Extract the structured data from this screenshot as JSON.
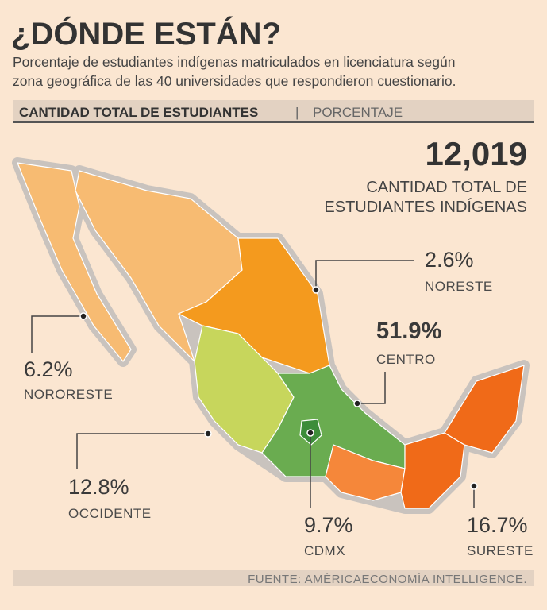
{
  "header": {
    "title": "¿DÓNDE ESTÁN?",
    "subtitle_lines": [
      "Porcentaje de estudiantes indígenas matriculados en licenciatura según",
      "zona geográfica de las 40 universidades que respondieron cuestionario."
    ],
    "tab_left": "CANTIDAD TOTAL DE ESTUDIANTES",
    "tab_separator": "|",
    "tab_right": "PORCENTAJE"
  },
  "total": {
    "value": "12,019",
    "label_lines": [
      "CANTIDAD TOTAL DE",
      "ESTUDIANTES INDÍGENAS"
    ]
  },
  "regions": [
    {
      "name": "NORESTE",
      "value": "2.6%"
    },
    {
      "name": "NORORESTE",
      "value": "6.2%"
    },
    {
      "name": "CENTRO",
      "value": "51.9%"
    },
    {
      "name": "OCCIDENTE",
      "value": "12.8%"
    },
    {
      "name": "CDMX",
      "value": "9.7%"
    },
    {
      "name": "SURESTE",
      "value": "16.7%"
    }
  ],
  "footer": {
    "source": "FUENTE: AMÉRICAECONOMÍA INTELLIGENCE."
  }
}
